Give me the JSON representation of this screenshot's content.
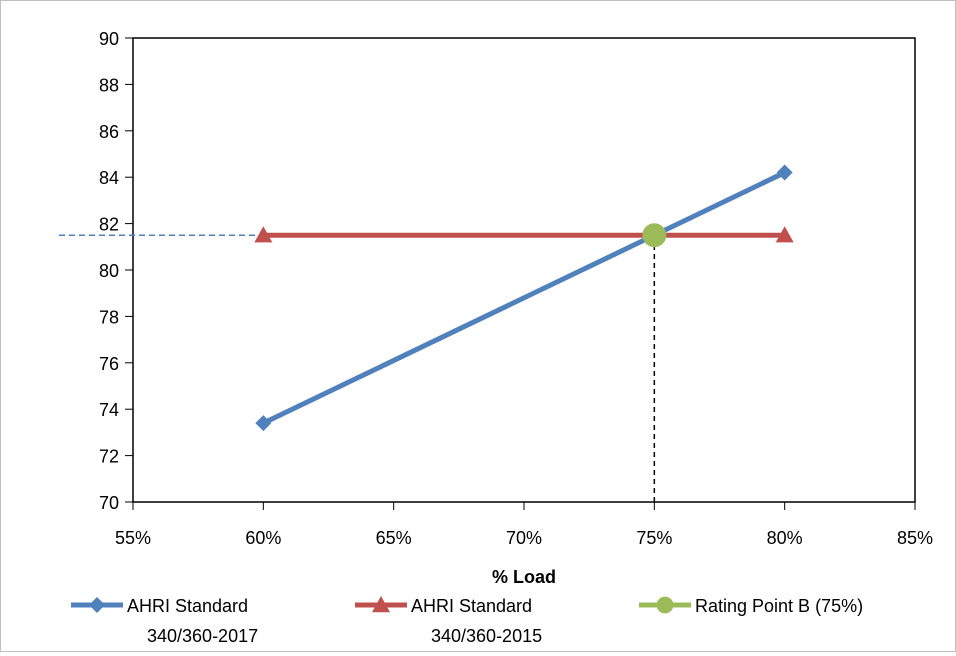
{
  "chart_data": {
    "type": "line",
    "title": "",
    "xlabel": "% Load",
    "ylabel": "",
    "xlim": [
      55,
      85
    ],
    "ylim": [
      70,
      90
    ],
    "x_ticks": [
      55,
      60,
      65,
      70,
      75,
      80,
      85
    ],
    "x_tick_labels": [
      "55%",
      "60%",
      "65%",
      "70%",
      "75%",
      "80%",
      "85%"
    ],
    "y_ticks": [
      70,
      72,
      74,
      76,
      78,
      80,
      82,
      84,
      86,
      88,
      90
    ],
    "y_tick_labels": [
      "70",
      "72",
      "74",
      "76",
      "78",
      "80",
      "82",
      "84",
      "86",
      "88",
      "90"
    ],
    "grid": false,
    "legend_position": "bottom",
    "series": [
      {
        "name_lines": [
          "AHRI Standard",
          "340/360-2017"
        ],
        "color": "#4f81bd",
        "marker": "diamond",
        "points": [
          [
            60,
            73.4
          ],
          [
            80,
            84.2
          ]
        ]
      },
      {
        "name_lines": [
          "AHRI Standard",
          "340/360-2015"
        ],
        "color": "#c0504d",
        "marker": "triangle",
        "points": [
          [
            60,
            81.5
          ],
          [
            80,
            81.5
          ]
        ]
      },
      {
        "name_lines": [
          "Rating Point B (75%)"
        ],
        "color": "#9bbb59",
        "marker": "circle",
        "points": [
          [
            75,
            81.5
          ]
        ]
      }
    ],
    "reference_lines": [
      {
        "kind": "horizontal-dashed",
        "color": "#4f81bd",
        "from": [
          55,
          81.5
        ],
        "to": [
          75,
          81.5
        ]
      },
      {
        "kind": "vertical-dashed",
        "color": "#000000",
        "from": [
          75,
          70
        ],
        "to": [
          75,
          81.5
        ]
      }
    ]
  }
}
